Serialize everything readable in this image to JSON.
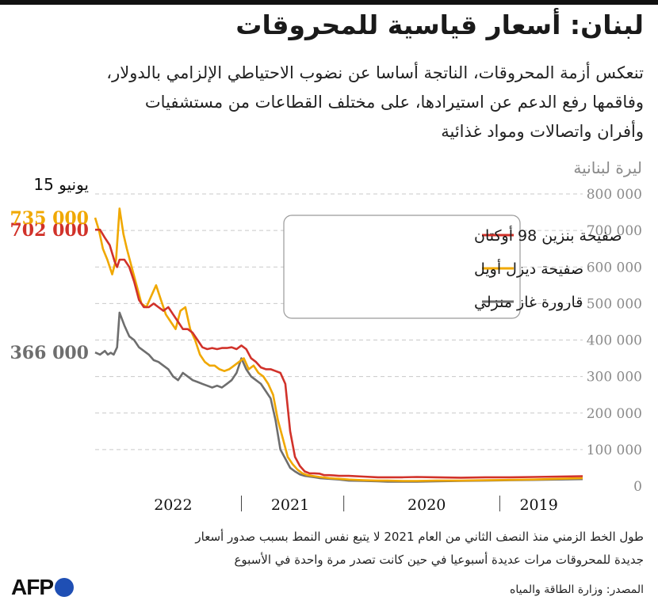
{
  "title": "لبنان: أسعار قياسية للمحروقات",
  "subtitle": [
    "تنعكس أزمة المحروقات، الناتجة أساسا عن نضوب الاحتياطي الإلزامي بالدولار،",
    "وفاقمها رفع الدعم عن استيرادها، على مختلف القطاعات من مستشفيات",
    "وأفران واتصالات ومواد غذائية"
  ],
  "unit": "ليرة لبنانية",
  "date_label": "15 يونيو",
  "footnote": [
    "طول الخط الزمني منذ النصف الثاني من العام 2021 لا يتبع نفس النمط بسبب صدور أسعار",
    "جديدة للمحروقات مرات عديدة أسبوعيا في حين كانت تصدر مرة واحدة في الأسبوع"
  ],
  "source": "المصدر: وزارة الطاقة والمياه",
  "logo": "AFP",
  "colors": {
    "gasoline": "#d1322a",
    "diesel": "#f0a800",
    "gas": "#6e6e6e",
    "grid": "#c9c9c9",
    "axis": "#8a8a8a",
    "brand": "#1f4fb4"
  },
  "chart_data": {
    "type": "line",
    "note": "x is a position along the reversed time axis: 0 = 15 June 2022 (left), 100 = early 2019 (right)",
    "ylim": [
      0,
      800000
    ],
    "yticks": [
      0,
      100000,
      200000,
      300000,
      400000,
      500000,
      600000,
      700000,
      800000
    ],
    "ytick_labels": [
      "0",
      "100 000",
      "200 000",
      "300 000",
      "400 000",
      "500 000",
      "600 000",
      "700 000",
      "800 000"
    ],
    "xticks": [
      {
        "label": "2022",
        "at": 16
      },
      {
        "label": "2021",
        "at": 40
      },
      {
        "label": "2020",
        "at": 68
      },
      {
        "label": "2019",
        "at": 91
      }
    ],
    "year_separators": [
      30,
      51,
      83
    ],
    "end_labels": [
      {
        "series": "gasoline",
        "text": "702 000"
      },
      {
        "series": "diesel",
        "text": "735 000"
      },
      {
        "series": "gas",
        "text": "366 000"
      }
    ],
    "series": [
      {
        "key": "gasoline",
        "name": "صفيحة بنزين 98 أوكتان",
        "x": [
          0,
          1,
          2,
          3,
          4,
          4.5,
          5,
          6,
          7,
          8,
          9,
          10,
          11,
          12,
          13,
          14,
          15,
          16,
          17,
          18,
          19,
          20,
          21,
          22,
          23,
          24,
          25,
          26,
          27,
          28,
          29,
          30,
          31,
          32,
          33,
          34,
          35,
          36,
          37,
          38,
          39,
          40,
          41,
          42,
          43,
          44,
          45,
          46,
          47,
          48,
          49,
          50,
          52,
          55,
          58,
          60,
          63,
          66,
          70,
          75,
          80,
          85,
          90,
          95,
          100
        ],
        "values": [
          702000,
          702000,
          680000,
          660000,
          615000,
          600000,
          620000,
          620000,
          600000,
          560000,
          510000,
          490000,
          490000,
          500000,
          490000,
          480000,
          490000,
          470000,
          450000,
          430000,
          430000,
          420000,
          400000,
          380000,
          375000,
          378000,
          375000,
          378000,
          378000,
          380000,
          375000,
          385000,
          375000,
          350000,
          340000,
          325000,
          320000,
          320000,
          315000,
          310000,
          280000,
          150000,
          80000,
          55000,
          40000,
          35000,
          35000,
          34000,
          30000,
          30000,
          29000,
          28000,
          28000,
          26000,
          24000,
          24000,
          24000,
          25000,
          24000,
          23000,
          24000,
          24000,
          25000,
          26000,
          27000
        ]
      },
      {
        "key": "diesel",
        "name": "صفيحة ديزل أويل",
        "x": [
          0,
          0.8,
          1.6,
          2.5,
          3.5,
          4.3,
          5,
          5.8,
          6.5,
          7.5,
          8.5,
          9.5,
          10.5,
          11.5,
          12.5,
          13.5,
          14.5,
          15.5,
          16.5,
          17.5,
          18.5,
          19.5,
          20.5,
          21.5,
          22.5,
          23.5,
          24.5,
          25.5,
          26.5,
          27.5,
          28.5,
          29.5,
          30.5,
          31.5,
          32.5,
          33.5,
          34.5,
          35.5,
          36.5,
          37.5,
          38.5,
          39.5,
          40.5,
          41.5,
          42.5,
          43.5,
          44.5,
          46,
          48,
          50,
          52,
          55,
          58,
          60,
          63,
          66,
          70,
          75,
          80,
          85,
          90,
          95,
          100
        ],
        "values": [
          735000,
          700000,
          650000,
          620000,
          580000,
          620000,
          760000,
          690000,
          650000,
          600000,
          550000,
          500000,
          490000,
          520000,
          550000,
          510000,
          470000,
          450000,
          430000,
          480000,
          490000,
          430000,
          400000,
          360000,
          340000,
          330000,
          330000,
          320000,
          315000,
          320000,
          330000,
          340000,
          350000,
          320000,
          330000,
          310000,
          300000,
          280000,
          250000,
          180000,
          130000,
          80000,
          60000,
          45000,
          35000,
          30000,
          28000,
          25000,
          22000,
          20000,
          18000,
          16000,
          15000,
          15000,
          14000,
          14000,
          15000,
          15000,
          16000,
          17000,
          18000,
          20000,
          22000
        ]
      },
      {
        "key": "gas",
        "name": "قارورة غاز منزلي",
        "x": [
          0,
          1,
          2,
          2.6,
          3.2,
          3.8,
          4.5,
          5,
          6,
          7,
          8,
          9,
          10,
          11,
          12,
          13,
          14,
          15,
          16,
          17,
          18,
          19,
          20,
          21,
          22,
          23,
          24,
          25,
          26,
          27,
          28,
          29,
          30,
          31,
          32,
          33,
          34,
          35,
          36,
          37,
          38,
          39,
          40,
          41,
          42,
          43,
          44,
          45,
          46,
          48,
          50,
          52,
          55,
          58,
          60,
          63,
          66,
          70,
          75,
          80,
          85,
          90,
          95,
          100
        ],
        "values": [
          366000,
          360000,
          370000,
          360000,
          365000,
          360000,
          380000,
          475000,
          440000,
          410000,
          400000,
          380000,
          370000,
          360000,
          345000,
          340000,
          330000,
          320000,
          300000,
          290000,
          310000,
          300000,
          290000,
          285000,
          280000,
          275000,
          270000,
          275000,
          270000,
          280000,
          290000,
          310000,
          350000,
          320000,
          300000,
          290000,
          280000,
          260000,
          240000,
          180000,
          100000,
          75000,
          50000,
          40000,
          32000,
          28000,
          26000,
          24000,
          22000,
          20000,
          18000,
          15000,
          14000,
          13000,
          12000,
          12000,
          12000,
          13000,
          14000,
          15000,
          16000,
          17000,
          18000,
          19000
        ]
      }
    ]
  }
}
